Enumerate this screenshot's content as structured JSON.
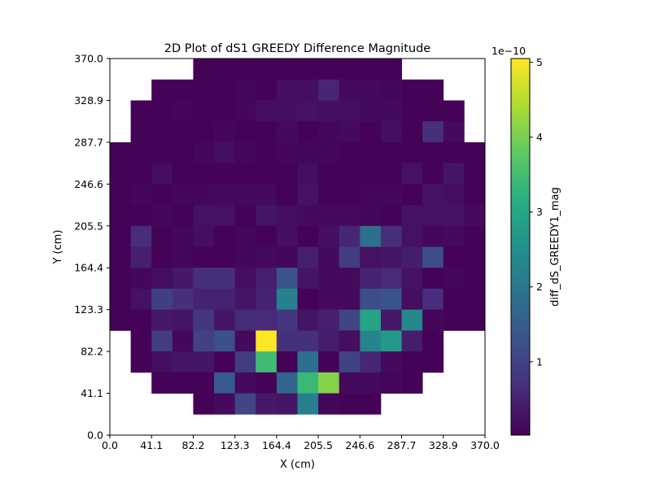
{
  "chart_data": {
    "type": "heatmap",
    "title": "2D Plot of dS1 GREEDY Difference Magnitude",
    "xlabel": "X (cm)",
    "ylabel": "Y (cm)",
    "xlim": [
      0,
      370
    ],
    "ylim": [
      0,
      370
    ],
    "x_ticks": [
      "0.0",
      "41.1",
      "82.2",
      "123.3",
      "164.4",
      "205.5",
      "246.6",
      "287.7",
      "328.9",
      "370.0"
    ],
    "y_ticks": [
      "0.0",
      "41.1",
      "82.2",
      "123.3",
      "164.4",
      "205.5",
      "246.6",
      "287.7",
      "328.9",
      "370.0"
    ],
    "grid": false,
    "colormap": "viridis",
    "colorbar": {
      "label": "diff_dS_GREEDY1_mag",
      "offset_text": "1e−10",
      "range": [
        0.02,
        5.05
      ],
      "ticks": [
        "1",
        "2",
        "3",
        "4",
        "5"
      ],
      "tick_values": [
        1,
        2,
        3,
        4,
        5
      ]
    },
    "x_bin_edges": [
      0,
      20.56,
      41.11,
      61.67,
      82.22,
      102.78,
      123.33,
      143.89,
      164.44,
      185,
      205.56,
      226.11,
      246.67,
      267.22,
      287.78,
      308.33,
      328.89,
      349.44,
      370
    ],
    "y_bin_edges": [
      0,
      20.56,
      41.11,
      61.67,
      82.22,
      102.78,
      123.33,
      143.89,
      164.44,
      185,
      205.56,
      226.11,
      246.67,
      267.22,
      287.78,
      308.33,
      328.89,
      349.44,
      370
    ],
    "value_scale": "1e-10",
    "values_rows_top_to_bottom": [
      [
        null,
        null,
        null,
        null,
        0.05,
        0.05,
        0.05,
        0.05,
        0.05,
        0.05,
        0.05,
        0.05,
        0.05,
        0.05,
        null,
        null,
        null,
        null
      ],
      [
        null,
        null,
        0.05,
        0.05,
        0.05,
        0.05,
        0.1,
        0.05,
        0.2,
        0.2,
        0.55,
        0.15,
        0.15,
        0.1,
        0.05,
        0.05,
        null,
        null
      ],
      [
        null,
        0.05,
        0.05,
        0.1,
        0.05,
        0.05,
        0.1,
        0.2,
        0.2,
        0.25,
        0.2,
        0.2,
        0.15,
        0.15,
        0.05,
        0.05,
        0.05,
        null
      ],
      [
        null,
        0.05,
        0.05,
        0.05,
        0.05,
        0.1,
        0.05,
        0.05,
        0.15,
        0.05,
        0.1,
        0.15,
        0.05,
        0.2,
        0.05,
        0.7,
        0.15,
        null
      ],
      [
        0.05,
        0.05,
        0.05,
        0.05,
        0.1,
        0.2,
        0.1,
        0.05,
        0.1,
        0.1,
        0.1,
        0.05,
        0.05,
        0.05,
        0.05,
        0.05,
        0.05,
        0.05
      ],
      [
        0.05,
        0.05,
        0.2,
        0.05,
        0.05,
        0.05,
        0.05,
        0.05,
        0.05,
        0.2,
        0.05,
        0.05,
        0.05,
        0.05,
        0.25,
        0.05,
        0.3,
        0.05
      ],
      [
        0.05,
        0.1,
        0.05,
        0.1,
        0.1,
        0.15,
        0.15,
        0.15,
        0.05,
        0.25,
        0.05,
        0.05,
        0.1,
        0.1,
        0.05,
        0.25,
        0.2,
        0.05
      ],
      [
        0.05,
        0.05,
        0.1,
        0.05,
        0.25,
        0.25,
        0.05,
        0.3,
        0.2,
        0.15,
        0.15,
        0.15,
        0.1,
        0.05,
        0.25,
        0.25,
        0.25,
        0.15
      ],
      [
        0.05,
        0.65,
        0.05,
        0.1,
        0.2,
        0.05,
        0.1,
        0.05,
        0.2,
        0.05,
        0.2,
        0.55,
        1.85,
        0.7,
        0.25,
        0.1,
        0.15,
        0.05
      ],
      [
        0.05,
        0.45,
        0.05,
        0.1,
        0.05,
        0.05,
        0.1,
        0.15,
        0.1,
        0.45,
        0.15,
        0.9,
        0.25,
        0.3,
        0.4,
        1.2,
        0.05,
        0.05
      ],
      [
        0.05,
        0.1,
        0.2,
        0.35,
        0.7,
        0.7,
        0.2,
        0.45,
        1.3,
        0.3,
        0.15,
        0.15,
        0.5,
        0.6,
        0.25,
        0.05,
        0.1,
        0.05
      ],
      [
        0.05,
        0.25,
        0.95,
        0.7,
        0.5,
        0.5,
        0.3,
        0.5,
        2.2,
        0.05,
        0.15,
        0.15,
        1.2,
        1.3,
        0.2,
        0.65,
        0.05,
        0.05
      ],
      [
        0.05,
        0.05,
        0.35,
        0.3,
        0.8,
        0.3,
        0.6,
        0.6,
        0.8,
        0.3,
        0.45,
        1.05,
        2.95,
        0.35,
        2.35,
        0.1,
        0.05,
        0.05
      ],
      [
        null,
        0.05,
        0.9,
        0.1,
        1.0,
        1.25,
        0.15,
        5.05,
        0.7,
        0.7,
        0.4,
        0.2,
        2.3,
        2.7,
        0.4,
        0.05,
        null,
        null
      ],
      [
        null,
        0.05,
        0.2,
        0.3,
        0.3,
        0.05,
        0.9,
        3.45,
        0.05,
        1.85,
        0.05,
        1.0,
        0.55,
        0.15,
        0.05,
        0.05,
        null,
        null
      ],
      [
        null,
        null,
        0.05,
        0.05,
        0.05,
        1.45,
        0.15,
        0.05,
        1.65,
        3.4,
        4.1,
        0.15,
        0.15,
        0.1,
        0.05,
        null,
        null,
        null
      ],
      [
        null,
        null,
        null,
        null,
        0.05,
        0.15,
        1.05,
        0.35,
        0.3,
        2.2,
        0.1,
        0.05,
        0.05,
        null,
        null,
        null,
        null,
        null
      ],
      [
        null,
        null,
        null,
        null,
        null,
        null,
        null,
        null,
        null,
        null,
        null,
        null,
        null,
        null,
        null,
        null,
        null,
        null
      ]
    ]
  }
}
